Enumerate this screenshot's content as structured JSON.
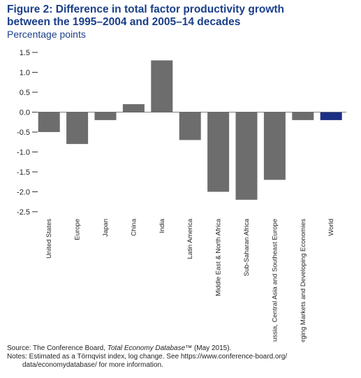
{
  "chart_data": {
    "type": "bar",
    "title_line1": "Figure 2: Difference in total factor productivity growth",
    "title_line2": "between the 1995–2004 and 2005–14 decades",
    "subtitle": "Percentage points",
    "categories": [
      "United States",
      "Europe",
      "Japan",
      "China",
      "India",
      "Latin America",
      "Middle East & North Africa",
      "Sub-Saharan Africa",
      "Russia, Central Asia and Southeast Europe",
      "Emerging Markets and Developing Economies",
      "World"
    ],
    "values": [
      -0.5,
      -0.8,
      -0.2,
      0.2,
      1.3,
      -0.7,
      -2.0,
      -2.2,
      -1.7,
      -0.2,
      -0.2
    ],
    "ylim": [
      -2.5,
      1.5
    ],
    "yticks": [
      "1.5",
      "1.0",
      "0.5",
      "0.0",
      "-0.5",
      "-1.0",
      "-1.5",
      "-2.0",
      "-2.5"
    ],
    "ytick_values": [
      1.5,
      1.0,
      0.5,
      0.0,
      -0.5,
      -1.0,
      -1.5,
      -2.0,
      -2.5
    ],
    "colors": {
      "bar": "#6d6d6d",
      "highlight": "#1b2f85",
      "title": "#1a3f8a",
      "axis": "#333333"
    },
    "highlight_category": "World"
  },
  "notes": {
    "source_prefix": "Source: The Conference Board, ",
    "source_italic": "Total Economy Database",
    "source_suffix": "™ (May 2015).",
    "notes_line1": "Notes: Estimated as a Törnqvist index, log change. See https://www.conference-board.org/",
    "notes_line2": "data/economydatabase/ for more information."
  }
}
